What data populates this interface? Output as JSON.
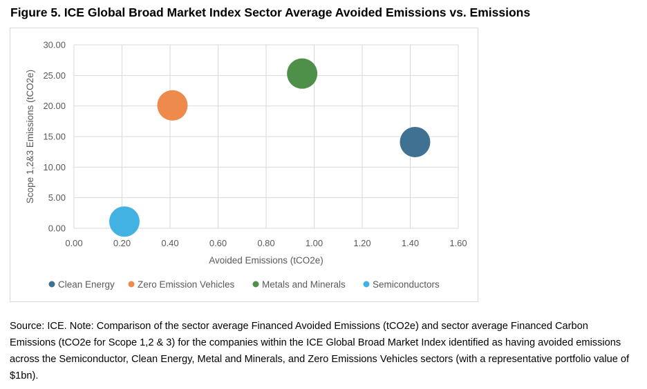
{
  "figure": {
    "title": "Figure 5. ICE Global Broad Market Index Sector Average Avoided Emissions vs. Emissions",
    "source_note": "Source: ICE. Note: Comparison of the sector average Financed Avoided Emissions (tCO2e) and sector average Financed Carbon Emissions (tCO2e for Scope 1,2 & 3) for the companies within the ICE Global Broad Market Index identified as having avoided emissions across the Semiconductor, Clean Energy, Metal and Minerals, and Zero Emissions Vehicles sectors (with a representative portfolio value of $1bn)."
  },
  "chart_data": {
    "type": "scatter",
    "xlabel": "Avoided Emissions (tCO2e)",
    "ylabel": "Scope 1,2&3 Emissions (tCO2e)",
    "xlim": [
      0,
      1.6
    ],
    "ylim": [
      0,
      30
    ],
    "x_ticks": [
      "0.00",
      "0.20",
      "0.40",
      "0.60",
      "0.80",
      "1.00",
      "1.20",
      "1.40",
      "1.60"
    ],
    "y_ticks": [
      "0.00",
      "5.00",
      "10.00",
      "15.00",
      "20.00",
      "25.00",
      "30.00"
    ],
    "grid": true,
    "legend_position": "bottom",
    "series": [
      {
        "name": "Clean Energy",
        "x": 1.42,
        "y": 14.1,
        "color": "#3f7193"
      },
      {
        "name": "Zero Emission Vehicles",
        "x": 0.41,
        "y": 20.1,
        "color": "#ee8a4c"
      },
      {
        "name": "Metals and Minerals",
        "x": 0.95,
        "y": 25.3,
        "color": "#4e8f49"
      },
      {
        "name": "Semiconductors",
        "x": 0.21,
        "y": 1.1,
        "color": "#41b2e2"
      }
    ]
  }
}
